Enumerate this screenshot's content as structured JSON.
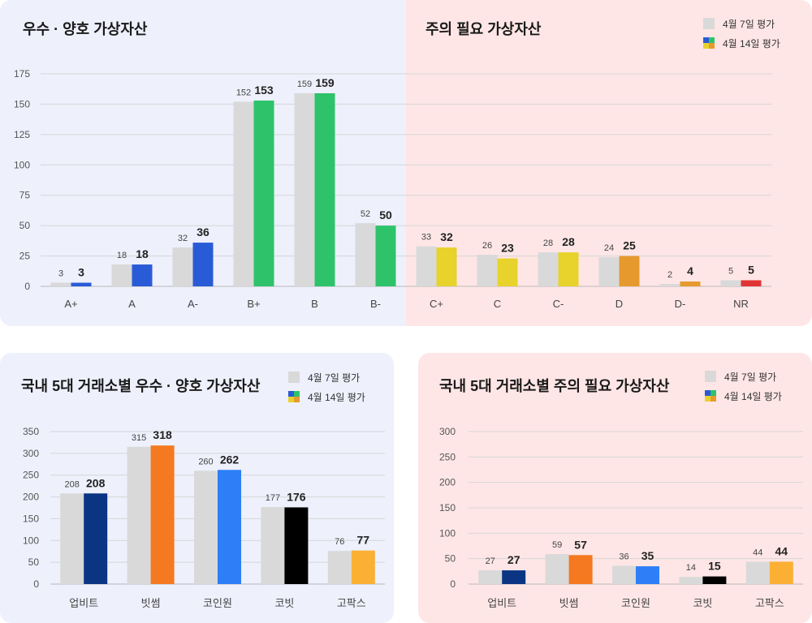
{
  "top": {
    "title_left": "우수 · 양호 가상자산",
    "title_right": "주의 필요 가상자산",
    "legend": [
      "4월 7일 평가",
      "4월 14일 평가"
    ]
  },
  "bottom_left": {
    "title": "국내 5대 거래소별 우수 · 양호 가상자산",
    "legend": [
      "4월 7일 평가",
      "4월 14일 평가"
    ]
  },
  "bottom_right": {
    "title": "국내 5대 거래소별 주의 필요 가상자산",
    "legend": [
      "4월 7일 평가",
      "4월 14일 평가"
    ]
  },
  "chart_data": [
    {
      "type": "bar",
      "categories": [
        "A+",
        "A",
        "A-",
        "B+",
        "B",
        "B-",
        "C+",
        "C",
        "C-",
        "D",
        "D-",
        "NR"
      ],
      "series": [
        {
          "name": "4월 7일 평가",
          "values": [
            3,
            18,
            32,
            152,
            159,
            52,
            33,
            26,
            28,
            24,
            2,
            5
          ],
          "color": "#d9d9d9"
        },
        {
          "name": "4월 14일 평가",
          "values": [
            3,
            18,
            36,
            153,
            159,
            50,
            32,
            23,
            28,
            25,
            4,
            5
          ],
          "colors": [
            "#2a5bd7",
            "#2a5bd7",
            "#2a5bd7",
            "#2ec36a",
            "#2ec36a",
            "#2ec36a",
            "#e8d22c",
            "#e8d22c",
            "#e8d22c",
            "#e69a2e",
            "#e69a2e",
            "#e03434"
          ]
        }
      ],
      "yticks": [
        0,
        25,
        50,
        75,
        100,
        125,
        150,
        175
      ],
      "ylim": [
        0,
        175
      ],
      "grid": true,
      "legend_position": "top-right"
    },
    {
      "type": "bar",
      "categories": [
        "업비트",
        "빗썸",
        "코인원",
        "코빗",
        "고팍스"
      ],
      "series": [
        {
          "name": "4월 7일 평가",
          "values": [
            208,
            315,
            260,
            177,
            76
          ],
          "color": "#d9d9d9"
        },
        {
          "name": "4월 14일 평가",
          "values": [
            208,
            318,
            262,
            176,
            77
          ],
          "colors": [
            "#0b3483",
            "#f47920",
            "#2d7ef7",
            "#000000",
            "#fbb034"
          ]
        }
      ],
      "yticks": [
        0,
        50,
        100,
        150,
        200,
        250,
        300,
        350
      ],
      "ylim": [
        0,
        350
      ],
      "grid": true,
      "legend_position": "top-right"
    },
    {
      "type": "bar",
      "categories": [
        "업비트",
        "빗썸",
        "코인원",
        "코빗",
        "고팍스"
      ],
      "series": [
        {
          "name": "4월 7일 평가",
          "values": [
            27,
            59,
            36,
            14,
            44
          ],
          "color": "#d9d9d9"
        },
        {
          "name": "4월 14일 평가",
          "values": [
            27,
            57,
            35,
            15,
            44
          ],
          "colors": [
            "#0b3483",
            "#f47920",
            "#2d7ef7",
            "#000000",
            "#fbb034"
          ]
        }
      ],
      "yticks": [
        0,
        50,
        100,
        150,
        200,
        250,
        300
      ],
      "ylim": [
        0,
        300
      ],
      "grid": true,
      "legend_position": "top-right"
    }
  ]
}
